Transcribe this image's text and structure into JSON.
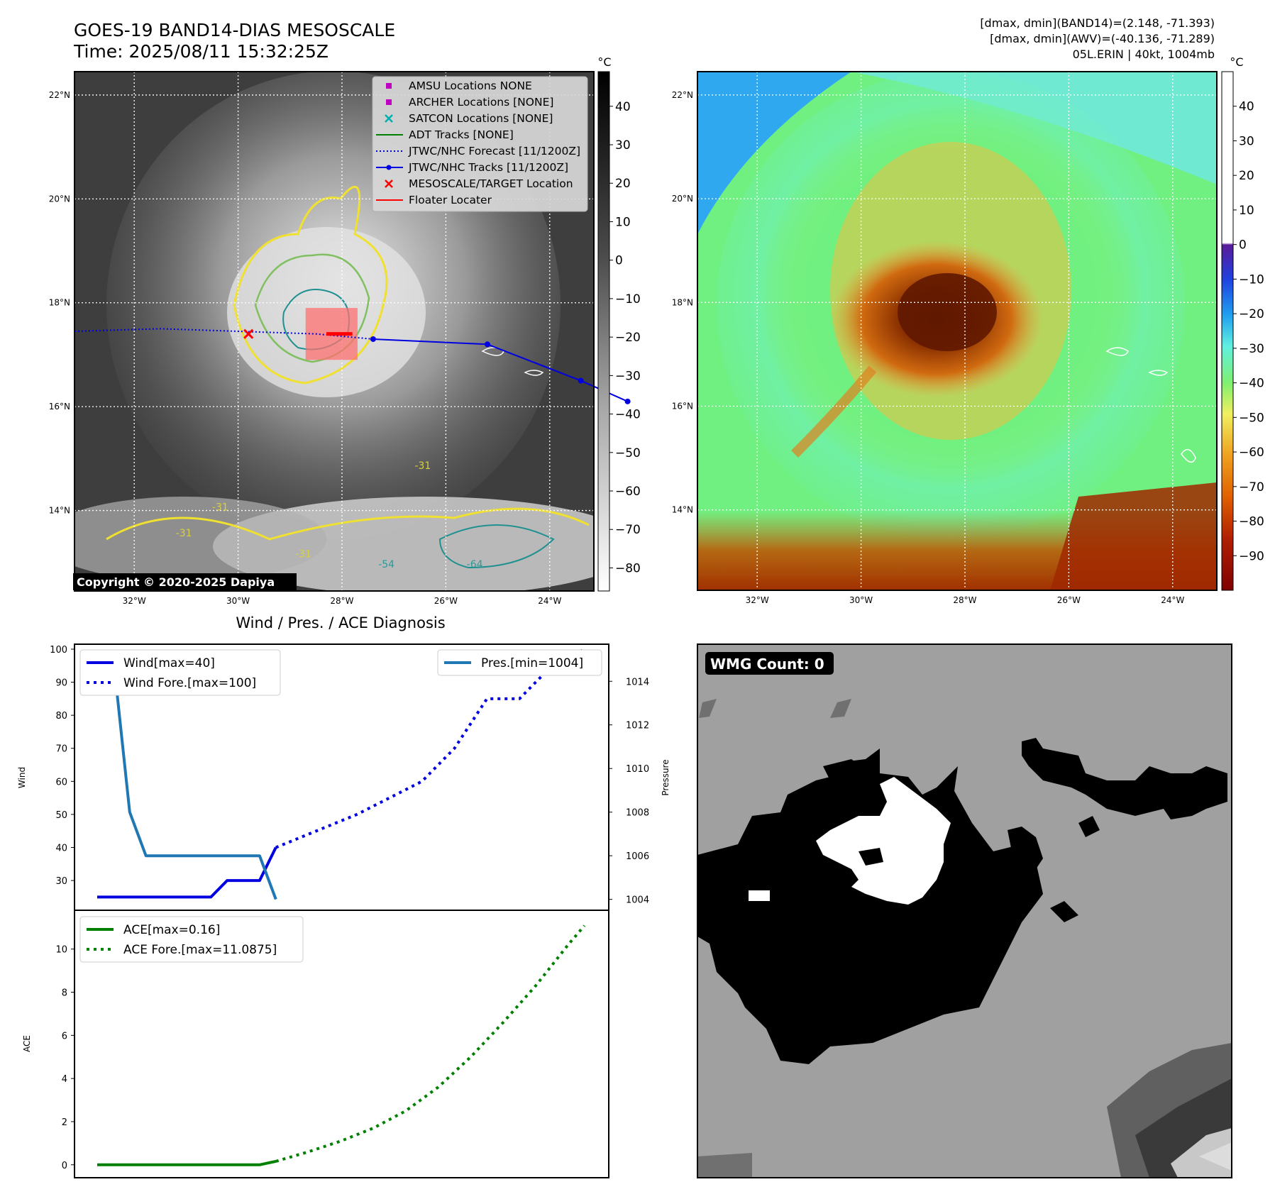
{
  "header": {
    "title": "GOES-19 BAND14-DIAS MESOSCALE",
    "time": "Time: 2025/08/11 15:32:25Z",
    "stats_band14": "[dmax, dmin](BAND14)=(2.148, -71.393)",
    "stats_awv": "[dmax, dmin](AWV)=(-40.136, -71.289)",
    "storm": "05L.ERIN | 40kt, 1004mb"
  },
  "copyright": "Copyright © 2020-2025 Dapiya",
  "map": {
    "lat_labels": [
      "22°N",
      "20°N",
      "18°N",
      "16°N",
      "14°N"
    ],
    "lat_values": [
      22,
      20,
      18,
      16,
      14
    ],
    "lon_labels": [
      "32°W",
      "30°W",
      "28°W",
      "26°W",
      "24°W"
    ],
    "lon_values": [
      -32,
      -30,
      -28,
      -26,
      -24
    ],
    "lon_range": [
      -33.15,
      -23.15
    ],
    "lat_range": [
      12.45,
      22.45
    ],
    "contour_labels": [
      "-31",
      "-31",
      "-31",
      "-31",
      "-54",
      "-64"
    ]
  },
  "legend": {
    "items": [
      {
        "label": "AMSU Locations NONE",
        "symbol": "square",
        "color": "#c000c0"
      },
      {
        "label": "ARCHER Locations [NONE]",
        "symbol": "square",
        "color": "#c000c0"
      },
      {
        "label": "SATCON Locations [NONE]",
        "symbol": "x",
        "color": "#00b0b0"
      },
      {
        "label": "ADT Tracks [NONE]",
        "symbol": "line",
        "color": "#008000"
      },
      {
        "label": "JTWC/NHC Forecast [11/1200Z]",
        "symbol": "dotted",
        "color": "#0000e0"
      },
      {
        "label": "JTWC/NHC Tracks [11/1200Z]",
        "symbol": "line-dot",
        "color": "#0000e0"
      },
      {
        "label": "MESOSCALE/TARGET Location",
        "symbol": "x",
        "color": "#ff0000"
      },
      {
        "label": "Floater Locater",
        "symbol": "line",
        "color": "#ff0000"
      }
    ]
  },
  "tracks": {
    "observed": [
      [
        -27.4,
        17.3
      ],
      [
        -25.2,
        17.2
      ],
      [
        -23.4,
        16.5
      ],
      [
        -22.5,
        16.1
      ]
    ],
    "forecast": [
      [
        -33.15,
        17.45
      ],
      [
        -31.5,
        17.5
      ],
      [
        -30.0,
        17.45
      ],
      [
        -28.5,
        17.4
      ],
      [
        -27.4,
        17.3
      ]
    ],
    "target": [
      -29.8,
      17.4
    ],
    "mesoscale_box": {
      "lon": [
        -28.7,
        -27.7
      ],
      "lat": [
        16.9,
        17.9
      ]
    },
    "floater": [
      [
        -28.3,
        17.4
      ],
      [
        -27.8,
        17.4
      ]
    ]
  },
  "colorbar_band14": {
    "unit": "°C",
    "ticks": [
      40,
      30,
      20,
      10,
      0,
      -10,
      -20,
      -30,
      -40,
      -50,
      -60,
      -70,
      -80
    ],
    "range": [
      49,
      -86
    ]
  },
  "colorbar_awv": {
    "unit": "°C",
    "ticks": [
      40,
      30,
      20,
      10,
      0,
      -10,
      -20,
      -30,
      -40,
      -50,
      -60,
      -70,
      -80,
      -90
    ],
    "range": [
      50,
      -100
    ]
  },
  "wmg": {
    "label": "WMG Count: 0"
  },
  "colors": {
    "obs_track": "#0000e0",
    "pres": "#1f77b4",
    "ace": "#008000",
    "target": "#ff0000"
  },
  "chart_data": [
    {
      "type": "line",
      "title": "Wind / Pres. / ACE Diagnosis",
      "ylabel": "Wind",
      "y2label": "Pressure",
      "ylim": [
        21,
        101.5
      ],
      "y2lim": [
        1003.5,
        1015.7
      ],
      "yticks": [
        30,
        40,
        50,
        60,
        70,
        80,
        90,
        100
      ],
      "y2ticks": [
        1004,
        1006,
        1008,
        1010,
        1012,
        1014
      ],
      "x": [
        0,
        1,
        2,
        3,
        4,
        5,
        6,
        7,
        8,
        9,
        10,
        11,
        12,
        13,
        14,
        15,
        16,
        17,
        18,
        19,
        20,
        21,
        22,
        23,
        24,
        25,
        26,
        27,
        28,
        29,
        30
      ],
      "xlim": [
        -1.4,
        31.5
      ],
      "series": [
        {
          "name": "Wind[max=40]",
          "axis": "left",
          "style": "solid",
          "color": "#0000e0",
          "x": [
            0,
            1,
            2,
            3,
            4,
            5,
            6,
            7,
            8,
            9,
            10,
            11
          ],
          "values": [
            25,
            25,
            25,
            25,
            25,
            25,
            25,
            25,
            30,
            30,
            30,
            40
          ]
        },
        {
          "name": "Wind Fore.[max=100]",
          "axis": "left",
          "style": "dotted",
          "color": "#0000e0",
          "x": [
            11,
            12,
            14,
            16,
            18,
            20,
            22,
            24,
            26,
            28,
            30
          ],
          "values": [
            40,
            42,
            46,
            50,
            55,
            60,
            70,
            85,
            85,
            95,
            100
          ]
        },
        {
          "name": "Pres.[min=1004]",
          "axis": "right",
          "style": "solid",
          "color": "#1f77b4",
          "x": [
            0,
            1,
            2,
            3,
            4,
            5,
            6,
            7,
            8,
            9,
            10,
            11
          ],
          "values": [
            1015,
            1015,
            1008,
            1006,
            1006,
            1006,
            1006,
            1006,
            1006,
            1006,
            1006,
            1004
          ]
        }
      ]
    },
    {
      "type": "line",
      "ylabel": "ACE",
      "ylim": [
        -0.6,
        11.8
      ],
      "yticks": [
        0,
        2,
        4,
        6,
        8,
        10
      ],
      "xlim": [
        -1.4,
        31.5
      ],
      "series": [
        {
          "name": "ACE[max=0.16]",
          "style": "solid",
          "color": "#008000",
          "x": [
            0,
            1,
            2,
            3,
            4,
            5,
            6,
            7,
            8,
            9,
            10,
            11
          ],
          "values": [
            0,
            0,
            0,
            0,
            0,
            0,
            0,
            0,
            0,
            0,
            0,
            0.16
          ]
        },
        {
          "name": "ACE Fore.[max=11.0875]",
          "style": "dotted",
          "color": "#008000",
          "x": [
            11,
            13,
            15,
            17,
            19,
            21,
            23,
            25,
            27,
            29,
            30
          ],
          "values": [
            0.16,
            0.6,
            1.1,
            1.7,
            2.5,
            3.6,
            5.0,
            6.6,
            8.3,
            10.2,
            11.0875
          ]
        }
      ]
    }
  ]
}
